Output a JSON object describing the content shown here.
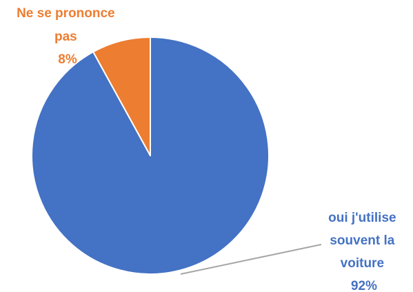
{
  "chart_data": {
    "type": "pie",
    "title": "",
    "slices": [
      {
        "label_lines": [
          "oui j'utilise",
          "souvent la",
          "voiture"
        ],
        "value": 92,
        "value_label": "92%",
        "color": "#4472C4"
      },
      {
        "label_lines": [
          "Ne se prononce",
          "pas"
        ],
        "value": 8,
        "value_label": "8%",
        "color": "#ED7D31"
      }
    ],
    "start": "12 o'clock, clockwise",
    "leader_line_color": "#A6A6A6",
    "legend": "none"
  }
}
